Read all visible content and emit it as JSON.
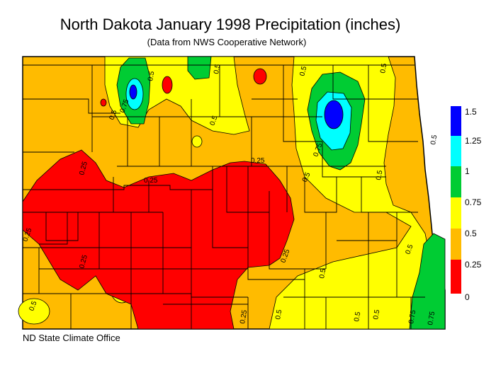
{
  "header": {
    "title": "North Dakota January 1998 Precipitation (inches)",
    "subtitle": "(Data from NWS Cooperative Network)"
  },
  "legend": {
    "items": [
      {
        "label": "1.5",
        "color": "#0000ff"
      },
      {
        "label": "1.25",
        "color": "#00ffff"
      },
      {
        "label": "1",
        "color": "#00cc33"
      },
      {
        "label": "0.75",
        "color": "#ffff00"
      },
      {
        "label": "0.5",
        "color": "#ffbb00"
      },
      {
        "label": "0.25",
        "color": "#ff0000"
      },
      {
        "label": "0",
        "color": "#ff0000"
      }
    ]
  },
  "contour_labels": [
    {
      "text": "0.5"
    },
    {
      "text": "0.5"
    },
    {
      "text": "0.5"
    },
    {
      "text": "0.5"
    },
    {
      "text": "0.5"
    },
    {
      "text": "0.75"
    },
    {
      "text": "0.5"
    },
    {
      "text": "0.5"
    },
    {
      "text": "0.75"
    },
    {
      "text": "0.5"
    },
    {
      "text": "0.5"
    },
    {
      "text": "0.5"
    },
    {
      "text": "0.25"
    },
    {
      "text": "0.25"
    },
    {
      "text": "0.25"
    },
    {
      "text": "0.25"
    },
    {
      "text": "0.25"
    },
    {
      "text": "0.25"
    },
    {
      "text": "0.25"
    },
    {
      "text": "0.5"
    },
    {
      "text": "0.5"
    },
    {
      "text": "0.5"
    },
    {
      "text": "0.5"
    },
    {
      "text": "0.5"
    },
    {
      "text": "0.75"
    },
    {
      "text": "0.75"
    }
  ],
  "footer": {
    "credit": "ND State Climate Office"
  }
}
